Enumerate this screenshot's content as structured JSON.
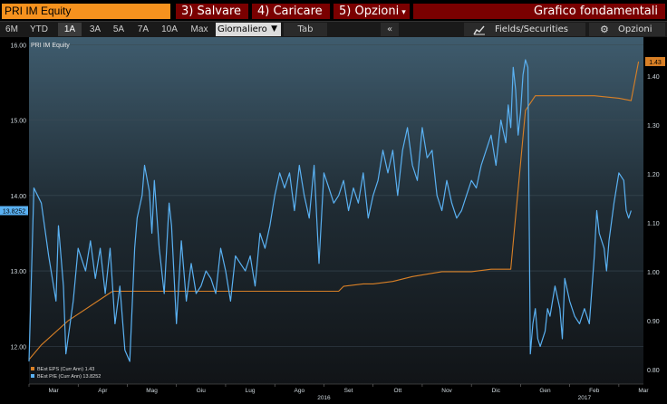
{
  "header": {
    "ticker": "PRI IM Equity",
    "menu": [
      "3) Salvare",
      "4) Caricare",
      "5) Opzioni"
    ],
    "title": "Grafico fondamentali"
  },
  "toolbar": {
    "periods": [
      "6M",
      "YTD",
      "1A",
      "3A",
      "5A",
      "7A",
      "10A",
      "Max"
    ],
    "active_period": "1A",
    "frequency": "Giornaliero",
    "tab_label": "Tab",
    "collapse_label": "«",
    "fields_label": "Fields/Securities",
    "options_label": "Opzioni"
  },
  "colors": {
    "eps": "#d98026",
    "pe": "#5ab1f2",
    "accent_orange": "#f6921e",
    "menu_red": "#7a0000"
  },
  "chart_data": {
    "type": "line",
    "title": "PRI IM Equity",
    "x_labels": [
      "Mar",
      "Apr",
      "Mag",
      "Giu",
      "Lug",
      "Ago",
      "Set",
      "Ott",
      "Nov",
      "Dic",
      "Gen",
      "Feb",
      "Mar"
    ],
    "year_labels": [
      "2016",
      "2017"
    ],
    "left_axis": {
      "ylim": [
        11.5,
        16.1
      ],
      "ticks": [
        "12.00",
        "13.00",
        "14.00",
        "15.00",
        "16.00"
      ]
    },
    "right_axis": {
      "ylim": [
        0.77,
        1.48
      ],
      "ticks": [
        "0.80",
        "0.90",
        "1.00",
        "1.10",
        "1.20",
        "1.30",
        "1.40"
      ]
    },
    "last_values": {
      "pe": "13.8252",
      "eps": "1.43"
    },
    "legend": [
      "BEst EPS (Curr Ann) 1.43",
      "BEst P/E (Curr Ann) 13.8252"
    ],
    "legend_position": "bottom-left",
    "series": [
      {
        "name": "BEst EPS (Curr Ann)",
        "axis": "right",
        "x": [
          0,
          0.25,
          0.8,
          0.8,
          1.7,
          2.2,
          2.8,
          3.4,
          3.9,
          4.5,
          5.0,
          5.5,
          5.9,
          6.3,
          6.4,
          6.8,
          7.0,
          7.4,
          7.8,
          8.4,
          9.0,
          9.4,
          9.8,
          10.1,
          10.3,
          10.8,
          11.5,
          12.0,
          12.25,
          12.4
        ],
        "values": [
          0.82,
          0.85,
          0.9,
          0.9,
          0.96,
          0.96,
          0.96,
          0.96,
          0.96,
          0.96,
          0.96,
          0.96,
          0.96,
          0.96,
          0.97,
          0.975,
          0.975,
          0.98,
          0.99,
          1.0,
          1.0,
          1.005,
          1.005,
          1.33,
          1.36,
          1.36,
          1.36,
          1.355,
          1.35,
          1.43
        ]
      },
      {
        "name": "BEst P/E (Curr Ann)",
        "axis": "left",
        "x": [
          0,
          0.1,
          0.25,
          0.4,
          0.55,
          0.6,
          0.7,
          0.75,
          0.9,
          1.0,
          1.15,
          1.25,
          1.35,
          1.45,
          1.55,
          1.65,
          1.75,
          1.85,
          1.95,
          2.05,
          2.15,
          2.2,
          2.3,
          2.35,
          2.45,
          2.5,
          2.55,
          2.65,
          2.75,
          2.85,
          2.9,
          3.0,
          3.1,
          3.2,
          3.3,
          3.4,
          3.5,
          3.6,
          3.7,
          3.8,
          3.9,
          4.0,
          4.1,
          4.2,
          4.3,
          4.4,
          4.5,
          4.6,
          4.7,
          4.8,
          4.9,
          5.0,
          5.1,
          5.2,
          5.3,
          5.4,
          5.5,
          5.6,
          5.7,
          5.8,
          5.9,
          6.0,
          6.1,
          6.2,
          6.3,
          6.4,
          6.5,
          6.6,
          6.7,
          6.8,
          6.9,
          7.0,
          7.1,
          7.2,
          7.3,
          7.4,
          7.5,
          7.6,
          7.7,
          7.8,
          7.9,
          8.0,
          8.1,
          8.2,
          8.3,
          8.4,
          8.5,
          8.6,
          8.7,
          8.8,
          8.9,
          9.0,
          9.1,
          9.2,
          9.3,
          9.4,
          9.5,
          9.6,
          9.7,
          9.75,
          9.8,
          9.85,
          9.9,
          9.95,
          10.0,
          10.05,
          10.1,
          10.15,
          10.2,
          10.25,
          10.3,
          10.35,
          10.4,
          10.5,
          10.55,
          10.6,
          10.7,
          10.8,
          10.85,
          10.9,
          11.0,
          11.1,
          11.2,
          11.3,
          11.4,
          11.5,
          11.55,
          11.6,
          11.7,
          11.75,
          11.8,
          11.9,
          12.0,
          12.1,
          12.15,
          12.2,
          12.25
        ],
        "values": [
          11.8,
          14.1,
          13.9,
          13.2,
          12.6,
          13.6,
          12.8,
          11.9,
          12.6,
          13.3,
          13.0,
          13.4,
          12.9,
          13.3,
          12.7,
          13.3,
          12.3,
          12.8,
          11.95,
          11.8,
          13.3,
          13.7,
          14.0,
          14.4,
          14.05,
          13.5,
          14.2,
          13.3,
          12.7,
          13.9,
          13.6,
          12.3,
          13.4,
          12.6,
          13.1,
          12.7,
          12.8,
          13.0,
          12.9,
          12.7,
          13.3,
          13.0,
          12.6,
          13.2,
          13.1,
          13.0,
          13.2,
          12.8,
          13.5,
          13.3,
          13.6,
          14.0,
          14.3,
          14.1,
          14.3,
          13.8,
          14.4,
          14.0,
          13.7,
          14.4,
          13.1,
          14.3,
          14.1,
          13.9,
          14.0,
          14.2,
          13.8,
          14.1,
          13.9,
          14.3,
          13.7,
          14.0,
          14.2,
          14.6,
          14.3,
          14.6,
          14.0,
          14.6,
          14.9,
          14.4,
          14.2,
          14.9,
          14.5,
          14.6,
          14.0,
          13.8,
          14.2,
          13.9,
          13.7,
          13.8,
          14.0,
          14.2,
          14.1,
          14.4,
          14.6,
          14.8,
          14.4,
          15.0,
          14.7,
          15.2,
          14.9,
          15.7,
          15.4,
          14.8,
          15.1,
          15.6,
          15.8,
          15.7,
          11.9,
          12.3,
          12.5,
          12.1,
          12.0,
          12.2,
          12.5,
          12.4,
          12.8,
          12.5,
          12.1,
          12.9,
          12.6,
          12.4,
          12.3,
          12.5,
          12.3,
          13.2,
          13.8,
          13.5,
          13.3,
          13.0,
          13.4,
          13.9,
          14.3,
          14.2,
          13.8,
          13.7,
          13.8
        ]
      }
    ],
    "grid": true
  }
}
